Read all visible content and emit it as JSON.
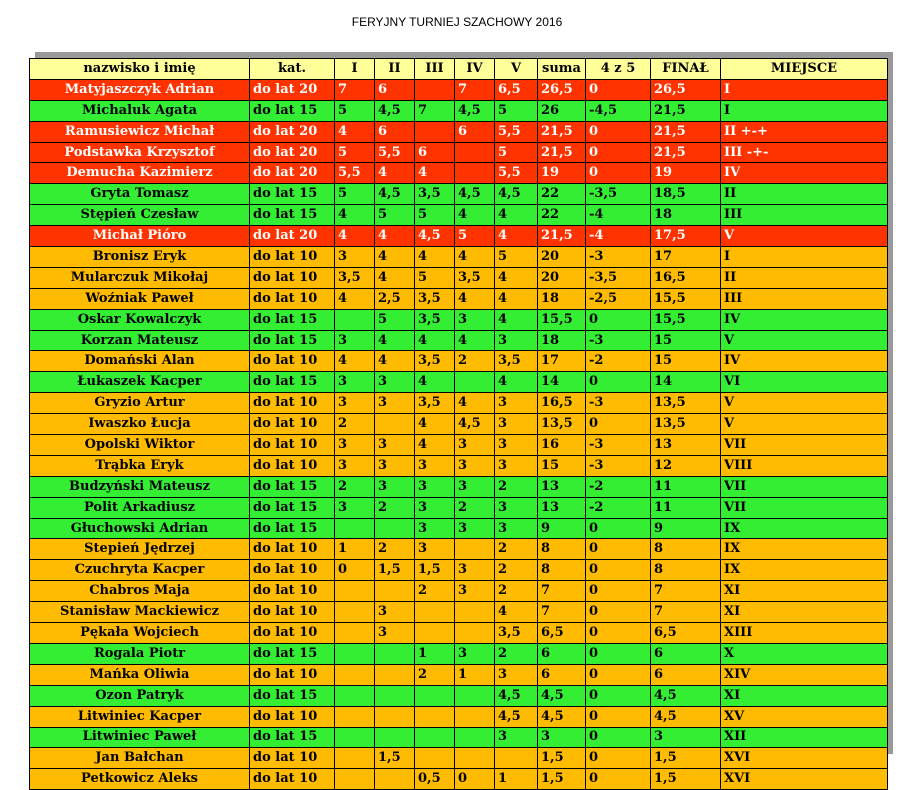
{
  "title": "FERYJNY TURNIEJ SZACHOWY 2016",
  "colors": {
    "red": "#ff3300",
    "green": "#33ee33",
    "orange": "#ffbb00",
    "header": "#ffff99"
  },
  "headers": [
    "nazwisko i imię",
    "kat.",
    "I",
    "II",
    "III",
    "IV",
    "V",
    "suma",
    "4 z 5",
    "FINAŁ",
    "MIEJSCE"
  ],
  "rows": [
    {
      "color": "red",
      "cells": [
        "Matyjaszczyk Adrian",
        "do lat 20",
        "7",
        "6",
        "",
        "7",
        "6,5",
        "26,5",
        "0",
        "26,5",
        "I"
      ]
    },
    {
      "color": "green",
      "cells": [
        "Michaluk Agata",
        "do lat 15",
        "5",
        "4,5",
        "7",
        "4,5",
        "5",
        "26",
        "-4,5",
        "21,5",
        "I"
      ]
    },
    {
      "color": "red",
      "cells": [
        "Ramusiewicz Michał",
        "do lat 20",
        "4",
        "6",
        "",
        "6",
        "5,5",
        "21,5",
        "0",
        "21,5",
        "II  +-+"
      ]
    },
    {
      "color": "red",
      "cells": [
        "Podstawka Krzysztof",
        "do lat 20",
        "5",
        "5,5",
        "6",
        "",
        "5",
        "21,5",
        "0",
        "21,5",
        "III -+-"
      ]
    },
    {
      "color": "red",
      "cells": [
        "Demucha Kazimierz",
        "do lat 20",
        "5,5",
        "4",
        "4",
        "",
        "5,5",
        "19",
        "0",
        "19",
        "IV"
      ]
    },
    {
      "color": "green",
      "cells": [
        "Gryta Tomasz",
        "do lat 15",
        "5",
        "4,5",
        "3,5",
        "4,5",
        "4,5",
        "22",
        "-3,5",
        "18,5",
        "II"
      ]
    },
    {
      "color": "green",
      "cells": [
        "Stępień Czesław",
        "do lat 15",
        "4",
        "5",
        "5",
        "4",
        "4",
        "22",
        "-4",
        "18",
        "III"
      ]
    },
    {
      "color": "red",
      "cells": [
        "Michał Pióro",
        "do lat 20",
        "4",
        "4",
        "4,5",
        "5",
        "4",
        "21,5",
        "-4",
        "17,5",
        "V"
      ]
    },
    {
      "color": "orange",
      "cells": [
        "Bronisz Eryk",
        "do lat 10",
        "3",
        "4",
        "4",
        "4",
        "5",
        "20",
        "-3",
        "17",
        "I"
      ]
    },
    {
      "color": "orange",
      "cells": [
        "Mularczuk Mikołaj",
        "do lat 10",
        "3,5",
        "4",
        "5",
        "3,5",
        "4",
        "20",
        "-3,5",
        "16,5",
        "II"
      ]
    },
    {
      "color": "orange",
      "cells": [
        "Woźniak Paweł",
        "do lat 10",
        "4",
        "2,5",
        "3,5",
        "4",
        "4",
        "18",
        "-2,5",
        "15,5",
        "III"
      ]
    },
    {
      "color": "green",
      "cells": [
        "Oskar Kowalczyk",
        "do lat 15",
        "",
        "5",
        "3,5",
        "3",
        "4",
        "15,5",
        "0",
        "15,5",
        "IV"
      ]
    },
    {
      "color": "green",
      "cells": [
        "Korzan Mateusz",
        "do lat 15",
        "3",
        "4",
        "4",
        "4",
        "3",
        "18",
        "-3",
        "15",
        "V"
      ]
    },
    {
      "color": "orange",
      "cells": [
        "Domański Alan",
        "do lat 10",
        "4",
        "4",
        "3,5",
        "2",
        "3,5",
        "17",
        "-2",
        "15",
        "IV"
      ]
    },
    {
      "color": "green",
      "cells": [
        "Łukaszek Kacper",
        "do lat 15",
        "3",
        "3",
        "4",
        "",
        "4",
        "14",
        "0",
        "14",
        "VI"
      ]
    },
    {
      "color": "orange",
      "cells": [
        "Gryzio Artur",
        "do lat 10",
        "3",
        "3",
        "3,5",
        "4",
        "3",
        "16,5",
        "-3",
        "13,5",
        "V"
      ]
    },
    {
      "color": "orange",
      "cells": [
        "Iwaszko Łucja",
        "do lat 10",
        "2",
        "",
        "4",
        "4,5",
        "3",
        "13,5",
        "0",
        "13,5",
        "V"
      ]
    },
    {
      "color": "orange",
      "cells": [
        "Opolski Wiktor",
        "do lat 10",
        "3",
        "3",
        "4",
        "3",
        "3",
        "16",
        "-3",
        "13",
        "VII"
      ]
    },
    {
      "color": "orange",
      "cells": [
        "Trąbka Eryk",
        "do lat 10",
        "3",
        "3",
        "3",
        "3",
        "3",
        "15",
        "-3",
        "12",
        "VIII"
      ]
    },
    {
      "color": "green",
      "cells": [
        "Budzyński Mateusz",
        "do lat 15",
        "2",
        "3",
        "3",
        "3",
        "2",
        "13",
        "-2",
        "11",
        "VII"
      ]
    },
    {
      "color": "green",
      "cells": [
        "Polit Arkadiusz",
        "do lat 15",
        "3",
        "2",
        "3",
        "2",
        "3",
        "13",
        "-2",
        "11",
        "VII"
      ]
    },
    {
      "color": "green",
      "cells": [
        "Głuchowski Adrian",
        "do lat 15",
        "",
        "",
        "3",
        "3",
        "3",
        "9",
        "0",
        "9",
        "IX"
      ]
    },
    {
      "color": "orange",
      "cells": [
        "Stepień Jędrzej",
        "do lat 10",
        "1",
        "2",
        "3",
        "",
        "2",
        "8",
        "0",
        "8",
        "IX"
      ]
    },
    {
      "color": "orange",
      "cells": [
        "Czuchryta Kacper",
        "do lat 10",
        "0",
        "1,5",
        "1,5",
        "3",
        "2",
        "8",
        "0",
        "8",
        "IX"
      ]
    },
    {
      "color": "orange",
      "cells": [
        "Chabros Maja",
        "do lat 10",
        "",
        "",
        "2",
        "3",
        "2",
        "7",
        "0",
        "7",
        "XI"
      ]
    },
    {
      "color": "orange",
      "cells": [
        "Stanisław Mackiewicz",
        "do lat 10",
        "",
        "3",
        "",
        "",
        "4",
        "7",
        "0",
        "7",
        "XI"
      ]
    },
    {
      "color": "orange",
      "cells": [
        "Pękała Wojciech",
        "do lat 10",
        "",
        "3",
        "",
        "",
        "3,5",
        "6,5",
        "0",
        "6,5",
        "XIII"
      ]
    },
    {
      "color": "green",
      "cells": [
        "Rogala Piotr",
        "do lat 15",
        "",
        "",
        "1",
        "3",
        "2",
        "6",
        "0",
        "6",
        "X"
      ]
    },
    {
      "color": "orange",
      "cells": [
        "Mańka Oliwia",
        "do lat 10",
        "",
        "",
        "2",
        "1",
        "3",
        "6",
        "0",
        "6",
        "XIV"
      ]
    },
    {
      "color": "green",
      "cells": [
        "Ozon Patryk",
        "do lat 15",
        "",
        "",
        "",
        "",
        "4,5",
        "4,5",
        "0",
        "4,5",
        "XI"
      ]
    },
    {
      "color": "orange",
      "cells": [
        "Litwiniec Kacper",
        "do lat 10",
        "",
        "",
        "",
        "",
        "4,5",
        "4,5",
        "0",
        "4,5",
        "XV"
      ]
    },
    {
      "color": "green",
      "cells": [
        "Litwiniec Paweł",
        "do lat 15",
        "",
        "",
        "",
        "",
        "3",
        "3",
        "0",
        "3",
        "XII"
      ]
    },
    {
      "color": "orange",
      "cells": [
        "Jan Bałchan",
        "do lat 10",
        "",
        "1,5",
        "",
        "",
        "",
        "1,5",
        "0",
        "1,5",
        "XVI"
      ]
    },
    {
      "color": "orange",
      "cells": [
        "Petkowicz Aleks",
        "do lat 10",
        "",
        "",
        "0,5",
        "0",
        "1",
        "1,5",
        "0",
        "1,5",
        "XVI"
      ]
    }
  ]
}
